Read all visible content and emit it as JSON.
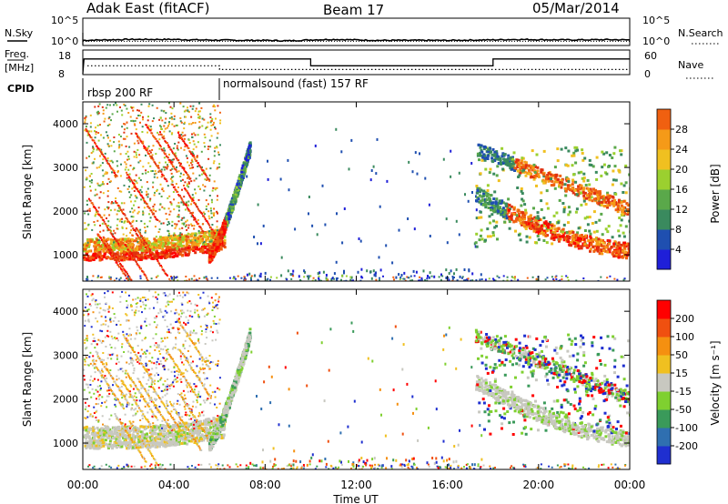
{
  "header": {
    "title": "Adak East (fitACF)",
    "beam": "Beam 17",
    "date": "05/Mar/2014"
  },
  "noise_panel": {
    "left_label": "N.Sky",
    "right_label": "N.Search",
    "left_ticks": [
      "10^5",
      "10^0"
    ],
    "right_ticks": [
      "10^5",
      "10^0"
    ]
  },
  "freq_panel": {
    "left_label_1": "Freq.",
    "left_label_2": "[MHz]",
    "right_label": "Nave",
    "left_ticks": [
      "18",
      "8"
    ],
    "right_ticks": [
      "60",
      "0"
    ]
  },
  "cpid": {
    "label": "CPID",
    "segments": [
      {
        "name": "rbsp 200 RF",
        "start_h": 0,
        "end_h": 6
      },
      {
        "name": "normalsound (fast) 157 RF",
        "start_h": 6,
        "end_h": 24
      }
    ]
  },
  "colors": {
    "power_scale": [
      "#1f1fd8",
      "#1f4fb0",
      "#3a8a5e",
      "#5aa84a",
      "#9bd02f",
      "#f0c020",
      "#f59a18",
      "#f06010",
      "#e03010",
      "#ff0000"
    ],
    "velocity_scale": [
      "#1f2fd0",
      "#2f6fb0",
      "#3a9a5a",
      "#7fd030",
      "#c8c8c0",
      "#f0c020",
      "#f59010",
      "#f05010",
      "#ff0000"
    ]
  },
  "chart_data": [
    {
      "type": "line",
      "panel": "noise",
      "x_unit": "hour UT",
      "series": [
        {
          "name": "N.Sky",
          "style": "solid",
          "x": [
            0,
            1,
            2,
            3,
            4,
            5,
            6,
            7,
            8,
            9,
            10,
            11,
            12,
            13,
            14,
            15,
            16,
            17,
            18,
            19,
            20,
            21,
            22,
            23,
            24
          ],
          "log10_values": [
            0.7,
            0.8,
            0.9,
            0.9,
            0.9,
            0.8,
            0.75,
            0.7,
            0.7,
            0.6,
            0.8,
            0.9,
            0.8,
            0.7,
            0.7,
            0.7,
            0.7,
            0.75,
            0.8,
            0.9,
            0.85,
            0.8,
            0.8,
            0.85,
            0.8
          ]
        },
        {
          "name": "N.Search",
          "style": "dotted",
          "x": [
            0,
            24
          ],
          "log10_values": [
            0.5,
            0.5
          ]
        }
      ],
      "ylim_log10": [
        0,
        5
      ]
    },
    {
      "type": "line",
      "panel": "frequency",
      "series": [
        {
          "name": "Freq.",
          "style": "solid",
          "x": [
            0,
            0.05,
            10,
            10,
            18,
            18,
            24
          ],
          "values": [
            8,
            14.5,
            14.5,
            11.5,
            11.5,
            14.5,
            14.5
          ]
        },
        {
          "name": "Nave",
          "style": "dotted",
          "x": [
            0.2,
            6,
            6,
            24
          ],
          "values": [
            21,
            21,
            11,
            11
          ]
        }
      ],
      "ylim": [
        8,
        18
      ],
      "ylim_right": [
        0,
        60
      ]
    },
    {
      "type": "heatmap",
      "panel": "power",
      "ylabel": "Slant Range [km]",
      "colorbar_label": "Power [dB]",
      "colorbar_ticks": [
        "4",
        "8",
        "12",
        "16",
        "20",
        "24",
        "28"
      ],
      "xlim": [
        0,
        24
      ],
      "ylim": [
        400,
        4500
      ],
      "yticks": [
        "1000",
        "2000",
        "3000",
        "4000"
      ]
    },
    {
      "type": "heatmap",
      "panel": "velocity",
      "ylabel": "Slant Range [km]",
      "colorbar_label": "Velocity [m s⁻¹]",
      "colorbar_ticks": [
        "-200",
        "-100",
        "-50",
        "-15",
        "15",
        "50",
        "100",
        "200"
      ],
      "xlabel": "Time UT",
      "xticks": [
        "00:00",
        "04:00",
        "08:00",
        "12:00",
        "16:00",
        "20:00",
        "00:00"
      ],
      "xlim": [
        0,
        24
      ],
      "ylim": [
        400,
        4500
      ],
      "yticks": [
        "1000",
        "2000",
        "3000",
        "4000"
      ]
    }
  ]
}
